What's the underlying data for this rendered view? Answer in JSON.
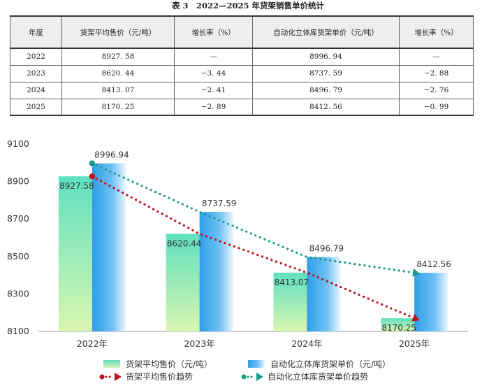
{
  "table": {
    "title": "表 3　2022—2025 年货架销售单价统计",
    "headers": [
      "年度",
      "货架平均售价（元/吨）",
      "增长率（%）",
      "自动化立体库货架单价（元/吨）",
      "增长率（%）"
    ],
    "rows": [
      [
        "2022",
        "8927. 58",
        "—",
        "8996. 94",
        "—"
      ],
      [
        "2023",
        "8620. 44",
        "−3. 44",
        "8737. 59",
        "−2. 88"
      ],
      [
        "2024",
        "8413. 07",
        "−2. 41",
        "8496. 79",
        "−2. 76"
      ],
      [
        "2025",
        "8170. 25",
        "−2. 89",
        "8412. 56",
        "−0. 99"
      ]
    ]
  },
  "chart_data": {
    "type": "bar",
    "categories": [
      "2022年",
      "2023年",
      "2024年",
      "2025年"
    ],
    "series": [
      {
        "name": "货架平均售价（元/吨）",
        "values": [
          8927.58,
          8620.44,
          8413.07,
          8170.25
        ],
        "value_labels": [
          "8927.58",
          "8620.44",
          "8413.07",
          "8170.25"
        ],
        "color": "#7fe0b4"
      },
      {
        "name": "自动化立体库货架单价（元/吨）",
        "values": [
          8996.94,
          8737.59,
          8496.79,
          8412.56
        ],
        "value_labels": [
          "8996.94",
          "8737.59",
          "8496.79",
          "8412.56"
        ],
        "color": "#3aa6e8"
      }
    ],
    "trend_series": [
      {
        "name": "货架平均售价趋势",
        "values": [
          8927.58,
          8620.44,
          8413.07,
          8170.25
        ],
        "color": "#c0101a",
        "style": "dotted"
      },
      {
        "name": "自动化立体库货架单价趋势",
        "values": [
          8996.94,
          8737.59,
          8496.79,
          8412.56
        ],
        "color": "#1a9a8a",
        "style": "dotted"
      }
    ],
    "y_ticks": [
      "8100",
      "8300",
      "8500",
      "8700",
      "8900",
      "9100"
    ],
    "ylim": [
      8100,
      9100
    ],
    "legend_position": "bottom",
    "grid": false
  }
}
